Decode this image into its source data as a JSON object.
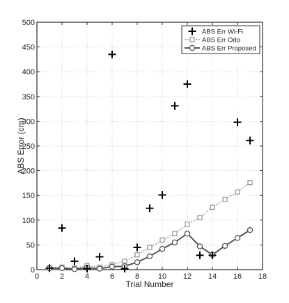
{
  "chart_data": {
    "type": "line",
    "title": "",
    "xlabel": "Trial Number",
    "ylabel": "ABS Error (cm)",
    "xlim": [
      0,
      18
    ],
    "ylim": [
      0,
      500
    ],
    "xticks": [
      0,
      2,
      4,
      6,
      8,
      10,
      12,
      14,
      16,
      18
    ],
    "yticks": [
      0,
      50,
      100,
      150,
      200,
      250,
      300,
      350,
      400,
      450,
      500
    ],
    "grid": true,
    "legend_position": "top-right",
    "x": [
      1,
      2,
      3,
      4,
      5,
      6,
      7,
      8,
      9,
      10,
      11,
      12,
      13,
      14,
      15,
      16,
      17
    ],
    "series": [
      {
        "name": "ABS Err Wi-Fi",
        "style": "markers-plus",
        "color": "#000000",
        "values": [
          3,
          84,
          17,
          2,
          26,
          435,
          2,
          45,
          124,
          151,
          331,
          375,
          29,
          29,
          null,
          298,
          261
        ]
      },
      {
        "name": "ABS Err Odo",
        "style": "dotted-square",
        "color": "#999999",
        "values": [
          4,
          5,
          3,
          8,
          5,
          10,
          17,
          30,
          45,
          60,
          73,
          92,
          105,
          126,
          142,
          157,
          176
        ]
      },
      {
        "name": "ABS Err Proposed",
        "style": "solid-circle",
        "color": "#555555",
        "values": [
          3,
          3,
          1,
          4,
          2,
          6,
          7,
          15,
          27,
          42,
          55,
          73,
          47,
          30,
          48,
          64,
          80
        ]
      }
    ]
  }
}
